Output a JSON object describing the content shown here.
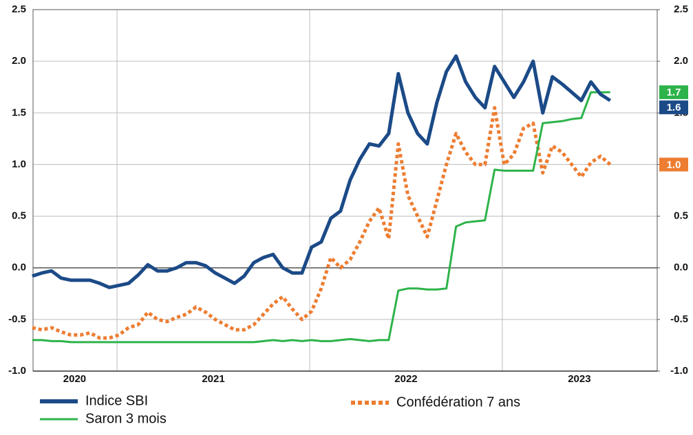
{
  "chart_data": {
    "type": "line",
    "x": [
      2020.56,
      2020.61,
      2020.66,
      2020.71,
      2020.76,
      2020.81,
      2020.86,
      2020.91,
      2020.96,
      2021.01,
      2021.06,
      2021.11,
      2021.16,
      2021.21,
      2021.26,
      2021.31,
      2021.36,
      2021.41,
      2021.46,
      2021.51,
      2021.56,
      2021.61,
      2021.66,
      2021.71,
      2021.76,
      2021.81,
      2021.86,
      2021.91,
      2021.96,
      2022.01,
      2022.06,
      2022.11,
      2022.16,
      2022.21,
      2022.26,
      2022.31,
      2022.36,
      2022.41,
      2022.46,
      2022.51,
      2022.56,
      2022.61,
      2022.66,
      2022.71,
      2022.76,
      2022.81,
      2022.86,
      2022.91,
      2022.96,
      2023.01,
      2023.06,
      2023.11,
      2023.16,
      2023.21,
      2023.26,
      2023.31,
      2023.36,
      2023.41,
      2023.46,
      2023.51,
      2023.56
    ],
    "xlim": [
      2020.564,
      2023.804
    ],
    "xgrid": [
      2021,
      2022,
      2023
    ],
    "xticks": [
      {
        "value": 2020.78,
        "label": "2020"
      },
      {
        "value": 2021.5,
        "label": "2021"
      },
      {
        "value": 2022.5,
        "label": "2022"
      },
      {
        "value": 2023.4,
        "label": "2023"
      }
    ],
    "ylim": [
      -1,
      2.5
    ],
    "yticks": [
      {
        "value": 2.5,
        "label": "2.5"
      },
      {
        "value": 2,
        "label": "2.0"
      },
      1.5,
      {
        "value": 1,
        "label": "1.0"
      },
      0.5,
      {
        "value": 0,
        "label": "0.0"
      },
      -0.5,
      {
        "value": -1,
        "label": "-1.0"
      }
    ],
    "y2lim": [
      -1,
      2.5
    ],
    "y2ticks": [
      {
        "value": 2.5,
        "label": "2.5"
      },
      {
        "value": 2,
        "label": "2.0"
      },
      1.5,
      {
        "value": 1,
        "label": "1.0"
      },
      0.5,
      {
        "value": 0,
        "label": "0.0"
      },
      -0.5,
      {
        "value": -1,
        "label": "-1.0"
      }
    ],
    "grid": true,
    "legend": "bottom",
    "series": [
      {
        "name": "Indice SBI",
        "color": "#1b4a87",
        "style": "solid",
        "end_label": "1.6",
        "values": [
          -0.08,
          -0.05,
          -0.03,
          -0.1,
          -0.12,
          -0.12,
          -0.12,
          -0.15,
          -0.19,
          -0.17,
          -0.15,
          -0.07,
          0.03,
          -0.03,
          -0.03,
          0.0,
          0.05,
          0.05,
          0.02,
          -0.05,
          -0.1,
          -0.15,
          -0.08,
          0.05,
          0.1,
          0.13,
          0.0,
          -0.05,
          -0.05,
          0.2,
          0.25,
          0.48,
          0.55,
          0.85,
          1.05,
          1.2,
          1.18,
          1.3,
          1.88,
          1.5,
          1.3,
          1.2,
          1.6,
          1.9,
          2.05,
          1.8,
          1.65,
          1.55,
          1.95,
          1.8,
          1.65,
          1.8,
          2.0,
          1.5,
          1.85,
          1.78,
          1.7,
          1.62,
          1.8,
          1.68,
          1.62
        ]
      },
      {
        "name": "Saron 3 mois",
        "color": "#2db34a",
        "style": "solid",
        "end_label": "1.7",
        "values": [
          -0.7,
          -0.7,
          -0.71,
          -0.71,
          -0.72,
          -0.72,
          -0.72,
          -0.72,
          -0.72,
          -0.72,
          -0.72,
          -0.72,
          -0.72,
          -0.72,
          -0.72,
          -0.72,
          -0.72,
          -0.72,
          -0.72,
          -0.72,
          -0.72,
          -0.72,
          -0.72,
          -0.72,
          -0.71,
          -0.7,
          -0.71,
          -0.7,
          -0.71,
          -0.7,
          -0.71,
          -0.71,
          -0.7,
          -0.69,
          -0.7,
          -0.71,
          -0.7,
          -0.7,
          -0.22,
          -0.2,
          -0.2,
          -0.21,
          -0.21,
          -0.2,
          0.4,
          0.44,
          0.45,
          0.46,
          0.95,
          0.94,
          0.94,
          0.94,
          0.94,
          1.4,
          1.41,
          1.42,
          1.44,
          1.45,
          1.7,
          1.7,
          1.7
        ]
      },
      {
        "name": "Confédération 7 ans",
        "color": "#ed7d31",
        "style": "dotted",
        "end_label": "1.0",
        "values": [
          -0.58,
          -0.6,
          -0.58,
          -0.62,
          -0.65,
          -0.65,
          -0.63,
          -0.68,
          -0.68,
          -0.65,
          -0.58,
          -0.55,
          -0.43,
          -0.5,
          -0.52,
          -0.48,
          -0.45,
          -0.38,
          -0.43,
          -0.5,
          -0.55,
          -0.6,
          -0.6,
          -0.55,
          -0.45,
          -0.35,
          -0.28,
          -0.4,
          -0.5,
          -0.42,
          -0.2,
          0.1,
          0.0,
          0.08,
          0.25,
          0.45,
          0.58,
          0.28,
          1.2,
          0.7,
          0.5,
          0.3,
          0.65,
          1.0,
          1.3,
          1.12,
          1.0,
          1.0,
          1.55,
          1.0,
          1.1,
          1.35,
          1.4,
          0.92,
          1.18,
          1.12,
          1.0,
          0.88,
          1.02,
          1.08,
          1.0
        ]
      }
    ]
  }
}
